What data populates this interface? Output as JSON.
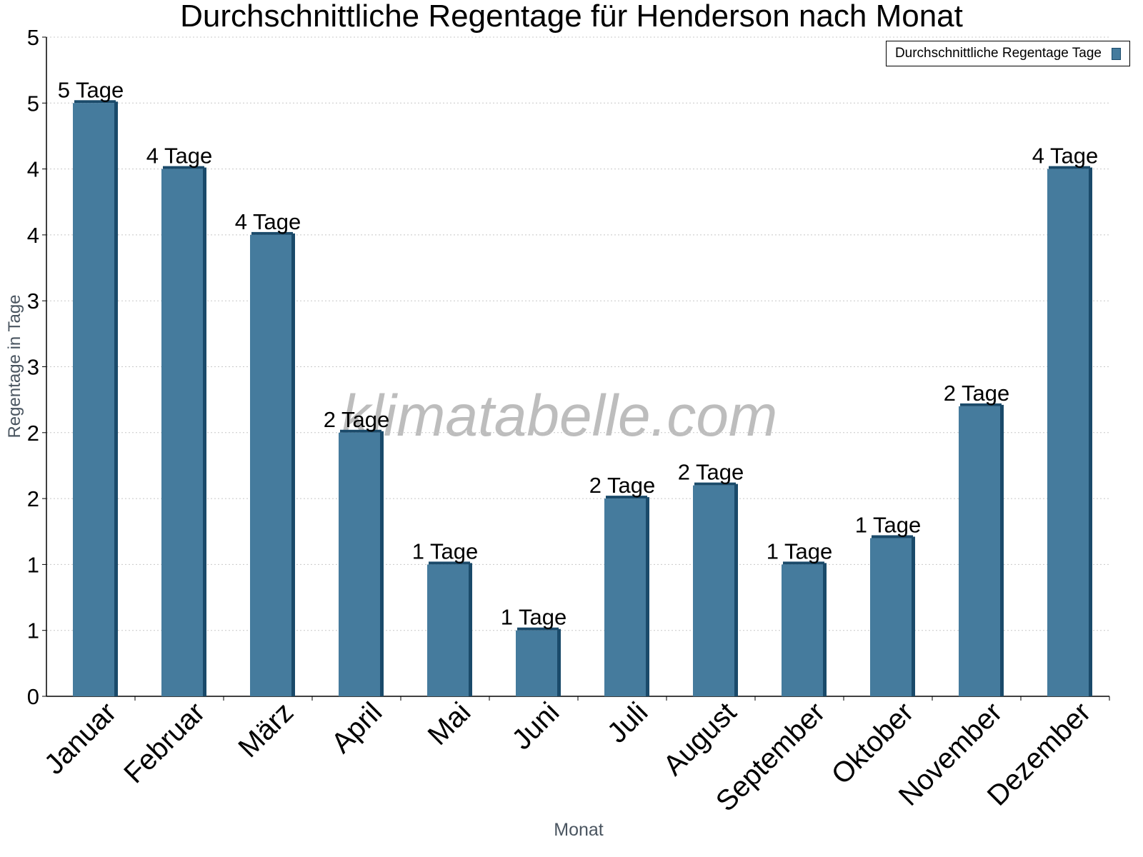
{
  "chart_data": {
    "type": "bar",
    "title": "Durchschnittliche Regentage für Henderson nach Monat",
    "xlabel": "Monat",
    "ylabel": "Regentage in Tage",
    "categories": [
      "Januar",
      "Februar",
      "März",
      "April",
      "Mai",
      "Juni",
      "Juli",
      "August",
      "September",
      "Oktober",
      "November",
      "Dezember"
    ],
    "series": [
      {
        "name": "Durchschnittliche Regentage Tage",
        "values": [
          4.5,
          4.0,
          3.5,
          2.0,
          1.0,
          0.5,
          1.5,
          1.6,
          1.0,
          1.2,
          2.2,
          4.0
        ],
        "labels": [
          "5 Tage",
          "4 Tage",
          "4 Tage",
          "2 Tage",
          "1 Tage",
          "1 Tage",
          "2 Tage",
          "2 Tage",
          "1 Tage",
          "1 Tage",
          "2 Tage",
          "4 Tage"
        ]
      }
    ],
    "ylim": [
      0,
      5
    ],
    "ytick_values": [
      0,
      0.5,
      1,
      1.5,
      2,
      2.5,
      3,
      3.5,
      4,
      4.5,
      5
    ],
    "ytick_labels": [
      "0",
      "1",
      "1",
      "2",
      "2",
      "3",
      "3",
      "4",
      "4",
      "5",
      "5"
    ],
    "grid": true,
    "legend": "top-right",
    "watermark": "klimatabelle.com",
    "colors": {
      "bar": "#457b9d",
      "bar_side": "#1a4a6a",
      "grid": "#c8c8c8",
      "axis_title": "#4a5560"
    }
  }
}
